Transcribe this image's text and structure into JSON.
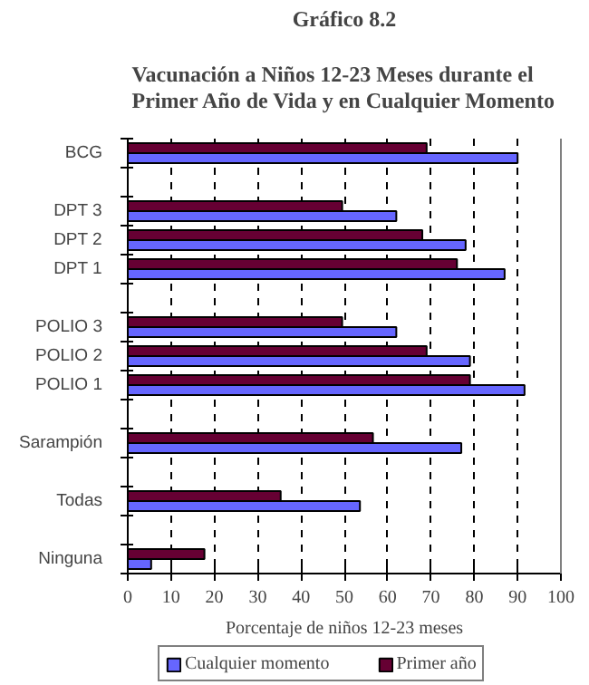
{
  "chart_data": {
    "type": "bar",
    "orientation": "horizontal",
    "title": "Gráfico 8.2",
    "subtitle": "Vacunación a Niños 12-23 Meses durante el Primer Año de Vida y en Cualquier Momento",
    "xlabel": "Porcentaje de niños 12-23 meses",
    "categories": [
      "BCG",
      null,
      "DPT 3",
      "DPT 2",
      "DPT 1",
      null,
      "POLIO 3",
      "POLIO 2",
      "POLIO 1",
      null,
      "Sarampión",
      null,
      "Todas",
      null,
      "Ninguna"
    ],
    "series": [
      {
        "name": "Cualquier momento",
        "color": "#6666ff",
        "values": [
          90,
          null,
          62,
          78,
          87,
          null,
          62,
          79,
          91.6,
          null,
          77,
          null,
          53.6,
          null,
          5.4
        ]
      },
      {
        "name": "Primer año",
        "color": "#660033",
        "values": [
          69,
          null,
          49.5,
          68,
          76,
          null,
          49.5,
          69,
          79,
          null,
          56.6,
          null,
          35.3,
          null,
          17.7
        ]
      }
    ],
    "xlim": [
      0,
      100
    ],
    "xticks": [
      0,
      10,
      20,
      30,
      40,
      50,
      60,
      70,
      80,
      90,
      100
    ],
    "grid": "x",
    "legend": "bottom"
  }
}
